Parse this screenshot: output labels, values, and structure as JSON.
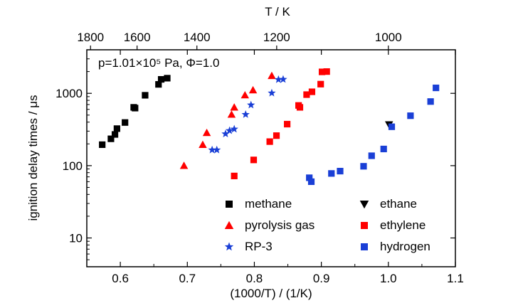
{
  "chart_data": {
    "type": "scatter",
    "annotation": "p=1.01×10⁵ Pa, Φ=1.0",
    "xlabel": "(1000/T) / (1/K)",
    "ylabel": "ignition delay times / μs",
    "top_xlabel": "T / K",
    "xlim": [
      0.55,
      1.1
    ],
    "ylim": [
      4,
      4000
    ],
    "yscale": "log",
    "x_ticks": [
      "0.6",
      "0.7",
      "0.8",
      "0.9",
      "1.0",
      "1.1"
    ],
    "y_ticks": [
      "10",
      "100",
      "1000"
    ],
    "top_ticks": [
      {
        "T": 1800,
        "label": "1800"
      },
      {
        "T": 1600,
        "label": "1600"
      },
      {
        "T": 1400,
        "label": "1400"
      },
      {
        "T": 1200,
        "label": "1200"
      },
      {
        "T": 1000,
        "label": "1000"
      }
    ],
    "legend_position": "bottom-right",
    "series": [
      {
        "name": "methane",
        "marker": "square",
        "color": "#000000",
        "points": [
          [
            0.573,
            195
          ],
          [
            0.586,
            235
          ],
          [
            0.592,
            270
          ],
          [
            0.595,
            325
          ],
          [
            0.607,
            395
          ],
          [
            0.62,
            640
          ],
          [
            0.622,
            625
          ],
          [
            0.637,
            940
          ],
          [
            0.657,
            1330
          ],
          [
            0.661,
            1560
          ],
          [
            0.67,
            1620
          ]
        ]
      },
      {
        "name": "pyrolysis gas",
        "marker": "triangle",
        "color": "#ff0000",
        "points": [
          [
            0.695,
            100
          ],
          [
            0.723,
            195
          ],
          [
            0.729,
            285
          ],
          [
            0.766,
            510
          ],
          [
            0.77,
            640
          ],
          [
            0.786,
            945
          ],
          [
            0.798,
            1110
          ],
          [
            0.826,
            1750
          ]
        ]
      },
      {
        "name": "RP-3",
        "marker": "star",
        "color": "#1a3fd6",
        "points": [
          [
            0.737,
            165
          ],
          [
            0.744,
            165
          ],
          [
            0.757,
            275
          ],
          [
            0.763,
            305
          ],
          [
            0.77,
            320
          ],
          [
            0.787,
            510
          ],
          [
            0.795,
            690
          ],
          [
            0.826,
            1010
          ],
          [
            0.836,
            1550
          ],
          [
            0.843,
            1560
          ]
        ]
      },
      {
        "name": "ethane",
        "marker": "triangle-down",
        "color": "#000000",
        "points": [
          [
            1.001,
            370
          ]
        ]
      },
      {
        "name": "ethylene",
        "marker": "square",
        "color": "#ff0000",
        "points": [
          [
            0.77,
            72
          ],
          [
            0.799,
            120
          ],
          [
            0.823,
            215
          ],
          [
            0.833,
            260
          ],
          [
            0.849,
            375
          ],
          [
            0.866,
            680
          ],
          [
            0.868,
            640
          ],
          [
            0.878,
            960
          ],
          [
            0.886,
            1050
          ],
          [
            0.899,
            1340
          ],
          [
            0.901,
            1980
          ],
          [
            0.908,
            2000
          ]
        ]
      },
      {
        "name": "hydrogen",
        "marker": "square",
        "color": "#1a3fd6",
        "points": [
          [
            0.882,
            68
          ],
          [
            0.885,
            60
          ],
          [
            0.915,
            78
          ],
          [
            0.928,
            84
          ],
          [
            0.963,
            98
          ],
          [
            0.975,
            137
          ],
          [
            0.993,
            170
          ],
          [
            1.005,
            345
          ],
          [
            1.033,
            490
          ],
          [
            1.063,
            770
          ],
          [
            1.071,
            1190
          ]
        ]
      }
    ]
  }
}
